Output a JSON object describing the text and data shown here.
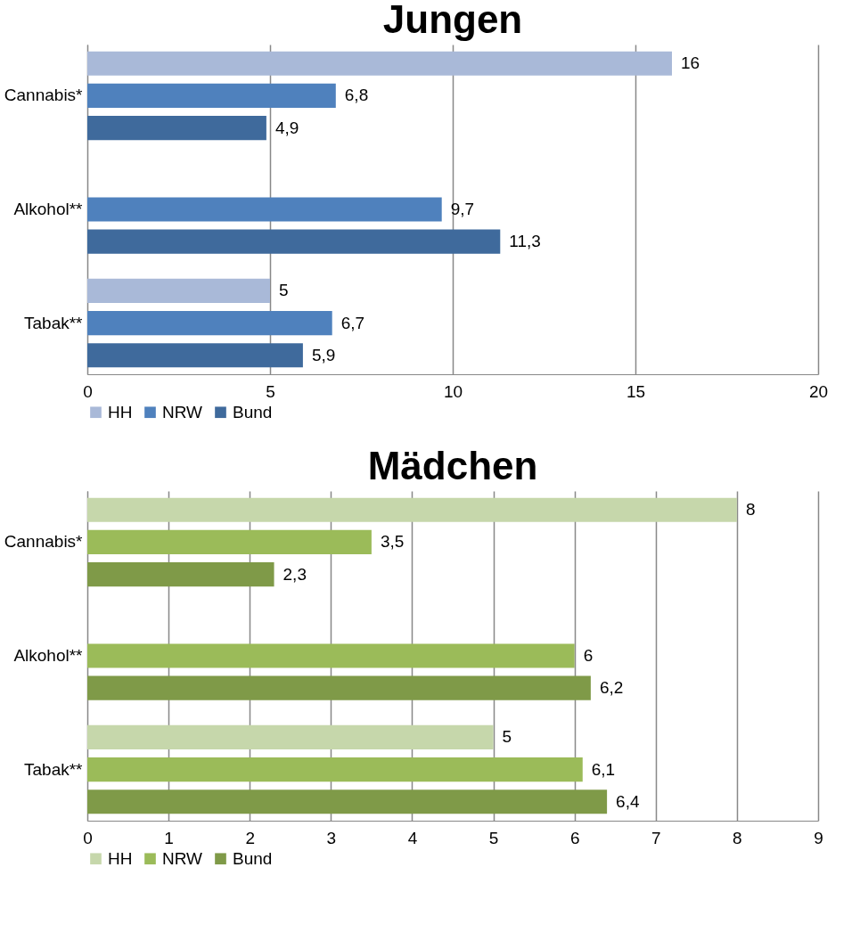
{
  "chart_data": [
    {
      "type": "bar",
      "orientation": "horizontal",
      "title": "Jungen",
      "categories": [
        "Cannabis*",
        "Alkohol**",
        "Tabak**"
      ],
      "xlim": [
        0,
        20
      ],
      "xticks": [
        0,
        5,
        10,
        15,
        20
      ],
      "grid": "x",
      "legend": "bottom",
      "series": [
        {
          "name": "HH",
          "color": "#a9b9d8",
          "values": [
            16,
            null,
            5
          ],
          "value_labels": [
            "16",
            null,
            "5"
          ]
        },
        {
          "name": "NRW",
          "color": "#4f81bd",
          "values": [
            6.8,
            9.7,
            6.7
          ],
          "value_labels": [
            "6,8",
            "9,7",
            "6,7"
          ]
        },
        {
          "name": "Bund",
          "color": "#3f6a9c",
          "values": [
            4.9,
            11.3,
            5.9
          ],
          "value_labels": [
            "4,9",
            "11,3",
            "5,9"
          ]
        }
      ]
    },
    {
      "type": "bar",
      "orientation": "horizontal",
      "title": "Mädchen",
      "categories": [
        "Cannabis*",
        "Alkohol**",
        "Tabak**"
      ],
      "xlim": [
        0,
        9
      ],
      "xticks": [
        0,
        1,
        2,
        3,
        4,
        5,
        6,
        7,
        8,
        9
      ],
      "grid": "x",
      "legend": "bottom",
      "series": [
        {
          "name": "HH",
          "color": "#c6d7ab",
          "values": [
            8,
            null,
            5
          ],
          "value_labels": [
            "8",
            null,
            "5"
          ]
        },
        {
          "name": "NRW",
          "color": "#9bbb59",
          "values": [
            3.5,
            6,
            6.1
          ],
          "value_labels": [
            "3,5",
            "6",
            "6,1"
          ]
        },
        {
          "name": "Bund",
          "color": "#7f9a48",
          "values": [
            2.3,
            6.2,
            6.4
          ],
          "value_labels": [
            "2,3",
            "6,2",
            "6,4"
          ]
        }
      ]
    }
  ]
}
